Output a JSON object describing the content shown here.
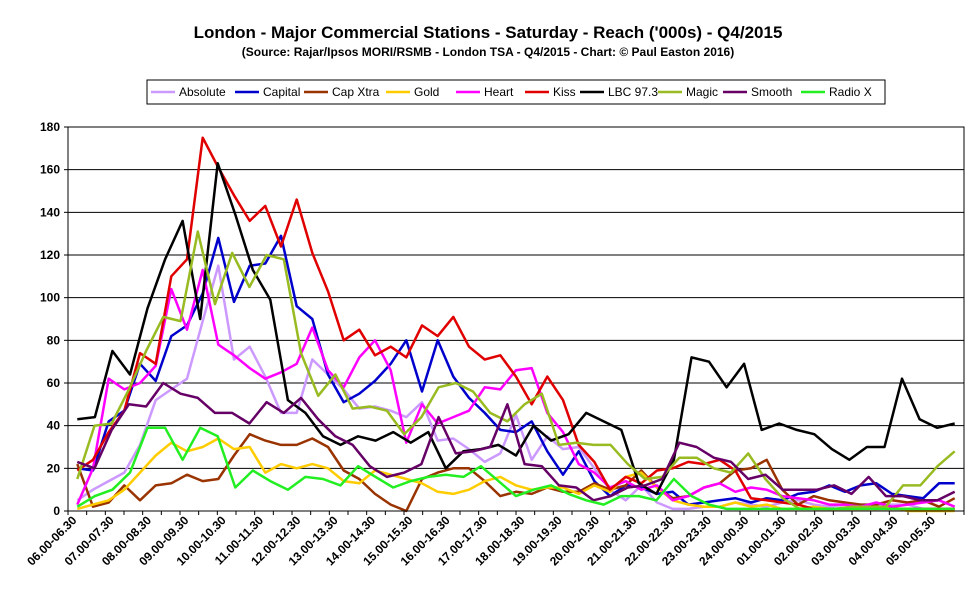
{
  "chart_data": {
    "type": "line",
    "title": "London - Major Commercial Stations - Saturday - Reach ('000s) - Q4/2015",
    "subtitle": "(Source: Rajar/Ipsos MORI/RSMB - London TSA - Q4/2015 - Chart: © Paul Easton 2016)",
    "ylim": [
      0,
      180
    ],
    "yticks": [
      0,
      20,
      40,
      60,
      80,
      100,
      120,
      140,
      160,
      180
    ],
    "grid": true,
    "legend_position": "top",
    "x_labels": [
      "06.00-06.30",
      "07.00-07.30",
      "08.00-08.30",
      "09.00-09.30",
      "10.00-10.30",
      "11.00-11.30",
      "12.00-12.30",
      "13.00-13.30",
      "14.00-14.30",
      "15.00-15.30",
      "16.00-16.30",
      "17.00-17.30",
      "18.00-18.30",
      "19.00-19.30",
      "20.00-20.30",
      "21.00-21.30",
      "22.00-22.30",
      "23.00-23.30",
      "24.00-00.30",
      "01.00-01.30",
      "02.00-02.30",
      "03.00-03.30",
      "04.00-04.30",
      "05.00-05.30"
    ],
    "series": [
      {
        "name": "Absolute",
        "color": "#CC99FF",
        "values": [
          5,
          10,
          14,
          18,
          31,
          52,
          57,
          62,
          89,
          115,
          71,
          77,
          63,
          46,
          46,
          71,
          64,
          57,
          48,
          49,
          47,
          44,
          51,
          33,
          34,
          29,
          23,
          27,
          45,
          24,
          35,
          29,
          30,
          20,
          10,
          5,
          12,
          4,
          1,
          1,
          2,
          2,
          4,
          3,
          2,
          4,
          5,
          3,
          2,
          3,
          3,
          3,
          3,
          3,
          1,
          1,
          1
        ]
      },
      {
        "name": "Capital",
        "color": "#0000CC",
        "values": [
          20,
          19,
          42,
          47,
          69,
          61,
          82,
          87,
          102,
          128,
          98,
          115,
          116,
          129,
          96,
          90,
          64,
          51,
          55,
          61,
          69,
          80,
          56,
          80,
          63,
          53,
          46,
          38,
          37,
          42,
          28,
          17,
          28,
          14,
          7,
          12,
          11,
          8,
          9,
          3,
          4,
          5,
          6,
          4,
          6,
          5,
          8,
          9,
          12,
          9,
          12,
          13,
          8,
          7,
          6,
          13,
          13
        ]
      },
      {
        "name": "Cap Xtra",
        "color": "#993300",
        "values": [
          22,
          2,
          4,
          12,
          5,
          12,
          13,
          17,
          14,
          15,
          26,
          36,
          33,
          31,
          31,
          34,
          30,
          19,
          15,
          8,
          3,
          0,
          15,
          18,
          20,
          20,
          14,
          7,
          9,
          8,
          11,
          9,
          9,
          13,
          10,
          12,
          19,
          11,
          6,
          7,
          11,
          13,
          19,
          20,
          24,
          10,
          3,
          7,
          5,
          4,
          3,
          3,
          5,
          4,
          5,
          2,
          6
        ]
      },
      {
        "name": "Gold",
        "color": "#FFCC00",
        "values": [
          1,
          3,
          5,
          10,
          18,
          26,
          32,
          28,
          30,
          34,
          29,
          30,
          18,
          22,
          20,
          22,
          20,
          14,
          13,
          19,
          17,
          15,
          13,
          9,
          8,
          10,
          14,
          16,
          12,
          10,
          11,
          11,
          8,
          12,
          9,
          16,
          18,
          11,
          5,
          3,
          2,
          2,
          4,
          2,
          3,
          1,
          1,
          2,
          1,
          1,
          1,
          1,
          2,
          0,
          0,
          0,
          0
        ]
      },
      {
        "name": "Heart",
        "color": "#FF00FF",
        "values": [
          3,
          20,
          62,
          57,
          60,
          68,
          104,
          85,
          113,
          78,
          73,
          67,
          62,
          65,
          69,
          86,
          66,
          58,
          72,
          80,
          66,
          32,
          50,
          41,
          44,
          47,
          58,
          57,
          66,
          67,
          46,
          37,
          22,
          18,
          11,
          14,
          10,
          12,
          5,
          7,
          11,
          13,
          9,
          11,
          10,
          7,
          6,
          5,
          3,
          3,
          2,
          4,
          2,
          3,
          4,
          5,
          2
        ]
      },
      {
        "name": "Kiss",
        "color": "#E00000",
        "values": [
          19,
          24,
          37,
          47,
          74,
          69,
          110,
          118,
          175,
          161,
          148,
          136,
          143,
          124,
          146,
          121,
          103,
          80,
          85,
          73,
          77,
          72,
          87,
          82,
          91,
          77,
          71,
          73,
          63,
          50,
          63,
          52,
          31,
          23,
          10,
          16,
          13,
          19,
          20,
          23,
          22,
          24,
          19,
          6,
          5,
          4,
          3,
          1,
          1,
          1,
          1,
          1,
          1,
          1,
          1,
          1,
          1
        ]
      },
      {
        "name": "LBC 97.3",
        "color": "#000000",
        "values": [
          43,
          44,
          75,
          64,
          95,
          118,
          136,
          90,
          163,
          139,
          113,
          99,
          52,
          46,
          35,
          31,
          35,
          33,
          37,
          32,
          37,
          20,
          28,
          29,
          31,
          26,
          40,
          33,
          36,
          46,
          42,
          38,
          13,
          8,
          24,
          72,
          70,
          58,
          69,
          38,
          41,
          38,
          36,
          29,
          24,
          30,
          30,
          62,
          43,
          39,
          41
        ]
      },
      {
        "name": "Magic",
        "color": "#99BB22",
        "values": [
          15,
          40,
          41,
          57,
          75,
          91,
          89,
          131,
          97,
          121,
          105,
          120,
          118,
          74,
          54,
          64,
          48,
          49,
          47,
          36,
          44,
          58,
          60,
          56,
          46,
          42,
          50,
          55,
          31,
          32,
          31,
          31,
          22,
          15,
          16,
          25,
          25,
          20,
          18,
          27,
          15,
          6,
          1,
          1,
          1,
          2,
          2,
          2,
          12,
          12,
          21,
          28
        ]
      },
      {
        "name": "Smooth",
        "color": "#660066",
        "values": [
          23,
          20,
          38,
          50,
          49,
          60,
          55,
          53,
          46,
          46,
          41,
          51,
          46,
          53,
          43,
          35,
          31,
          21,
          16,
          18,
          22,
          44,
          27,
          28,
          30,
          50,
          22,
          21,
          12,
          11,
          5,
          7,
          11,
          12,
          15,
          32,
          30,
          25,
          23,
          15,
          17,
          10,
          10,
          10,
          12,
          8,
          16,
          7,
          7,
          5,
          5,
          9
        ]
      },
      {
        "name": "Radio X",
        "color": "#22EE22",
        "values": [
          2,
          7,
          10,
          18,
          39,
          39,
          24,
          39,
          35,
          11,
          19,
          14,
          10,
          16,
          15,
          12,
          21,
          16,
          11,
          14,
          16,
          17,
          16,
          21,
          14,
          7,
          10,
          12,
          8,
          5,
          3,
          7,
          7,
          5,
          15,
          7,
          3,
          1,
          1,
          1,
          1,
          1,
          1,
          1,
          1,
          1,
          1,
          1,
          1,
          1,
          1
        ]
      }
    ]
  }
}
